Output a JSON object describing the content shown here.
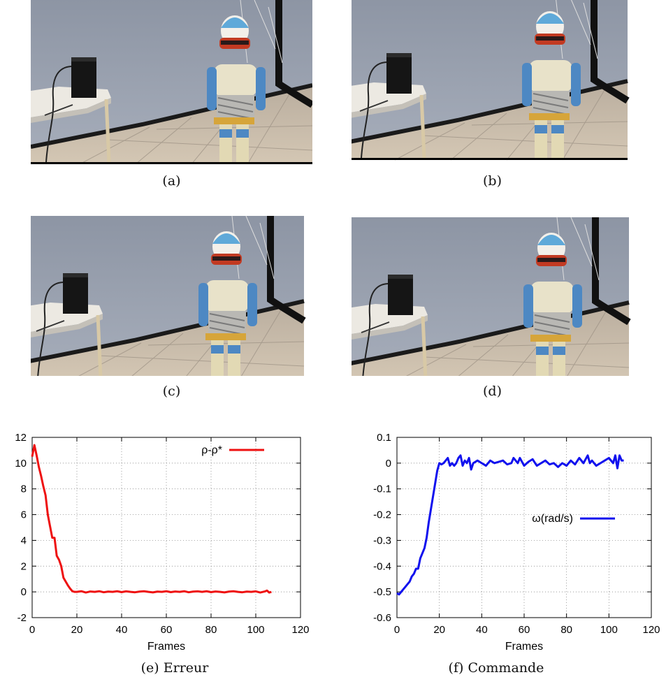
{
  "panels": [
    {
      "id": "a",
      "caption": "(a)"
    },
    {
      "id": "b",
      "caption": "(b)"
    },
    {
      "id": "c",
      "caption": "(c)"
    },
    {
      "id": "d",
      "caption": "(d)"
    }
  ],
  "plot_captions": {
    "e": "(e) Erreur",
    "f": "(f) Commande"
  },
  "chart_data": [
    {
      "type": "line",
      "xlabel": "Frames",
      "ylabel": "",
      "xlim": [
        0,
        120
      ],
      "ylim": [
        -2,
        12
      ],
      "xticks": [
        "0",
        "20",
        "40",
        "60",
        "80",
        "100",
        "120"
      ],
      "yticks": [
        "-2",
        "0",
        "2",
        "4",
        "6",
        "8",
        "10",
        "12"
      ],
      "grid": true,
      "legend_position": "top-right",
      "series": [
        {
          "name": "ρ-ρ*",
          "color": "#ee1111",
          "x": [
            0,
            1,
            2,
            3,
            4,
            5,
            6,
            7,
            8,
            9,
            10,
            11,
            12,
            13,
            14,
            15,
            16,
            17,
            18,
            19,
            20,
            22,
            24,
            26,
            28,
            30,
            32,
            34,
            36,
            38,
            40,
            42,
            44,
            46,
            48,
            50,
            52,
            54,
            56,
            58,
            60,
            62,
            64,
            66,
            68,
            70,
            72,
            74,
            76,
            78,
            80,
            82,
            84,
            86,
            88,
            90,
            92,
            94,
            96,
            98,
            100,
            102,
            104,
            105,
            106,
            107
          ],
          "y": [
            10.5,
            11.4,
            10.6,
            9.7,
            9.0,
            8.2,
            7.5,
            6.0,
            5.1,
            4.2,
            4.2,
            2.8,
            2.5,
            2.0,
            1.1,
            0.8,
            0.5,
            0.25,
            0.05,
            0.0,
            0.0,
            0.05,
            -0.05,
            0.03,
            0.0,
            0.05,
            -0.03,
            0.02,
            0.0,
            0.05,
            -0.02,
            0.04,
            0.0,
            -0.03,
            0.02,
            0.05,
            0.0,
            -0.04,
            0.02,
            0.0,
            0.05,
            -0.02,
            0.03,
            0.0,
            0.05,
            -0.03,
            0.02,
            0.04,
            0.0,
            0.05,
            -0.02,
            0.03,
            0.0,
            -0.04,
            0.02,
            0.05,
            0.0,
            -0.03,
            0.02,
            0.0,
            0.04,
            -0.05,
            0.03,
            0.1,
            -0.05,
            0.0
          ]
        }
      ]
    },
    {
      "type": "line",
      "xlabel": "Frames",
      "ylabel": "",
      "xlim": [
        0,
        120
      ],
      "ylim": [
        -0.6,
        0.1
      ],
      "xticks": [
        "0",
        "20",
        "40",
        "60",
        "80",
        "100",
        "120"
      ],
      "yticks": [
        "-0.6",
        "-0.5",
        "-0.4",
        "-0.3",
        "-0.2",
        "-0.1",
        "0",
        "0.1"
      ],
      "grid": true,
      "legend_position": "center-right",
      "series": [
        {
          "name": "ω(rad/s)",
          "color": "#1111ee",
          "x": [
            0,
            1,
            2,
            3,
            4,
            5,
            6,
            7,
            8,
            9,
            10,
            11,
            12,
            13,
            14,
            15,
            16,
            17,
            18,
            19,
            20,
            21,
            22,
            23,
            24,
            25,
            26,
            27,
            28,
            29,
            30,
            31,
            32,
            33,
            34,
            35,
            36,
            38,
            40,
            42,
            44,
            46,
            48,
            50,
            52,
            54,
            55,
            56,
            57,
            58,
            60,
            62,
            64,
            66,
            68,
            70,
            72,
            74,
            76,
            78,
            80,
            82,
            84,
            86,
            88,
            90,
            91,
            92,
            94,
            96,
            98,
            100,
            102,
            103,
            104,
            105,
            106,
            107
          ],
          "y": [
            -0.505,
            -0.51,
            -0.5,
            -0.49,
            -0.48,
            -0.47,
            -0.46,
            -0.44,
            -0.43,
            -0.41,
            -0.41,
            -0.37,
            -0.35,
            -0.33,
            -0.29,
            -0.23,
            -0.18,
            -0.13,
            -0.08,
            -0.03,
            0.0,
            -0.005,
            0.0,
            0.01,
            0.02,
            -0.01,
            0.0,
            -0.01,
            0.0,
            0.02,
            0.03,
            -0.01,
            0.01,
            0.0,
            0.02,
            -0.025,
            0.0,
            0.01,
            0.0,
            -0.01,
            0.01,
            0.0,
            0.005,
            0.01,
            -0.005,
            0.0,
            0.02,
            0.01,
            0.0,
            0.02,
            -0.01,
            0.005,
            0.015,
            -0.01,
            0.0,
            0.01,
            -0.005,
            0.0,
            -0.015,
            0.0,
            -0.01,
            0.01,
            -0.005,
            0.02,
            0.0,
            0.03,
            0.0,
            0.01,
            -0.01,
            0.0,
            0.01,
            0.02,
            0.0,
            0.03,
            -0.02,
            0.03,
            0.01,
            0.01
          ]
        }
      ]
    }
  ]
}
